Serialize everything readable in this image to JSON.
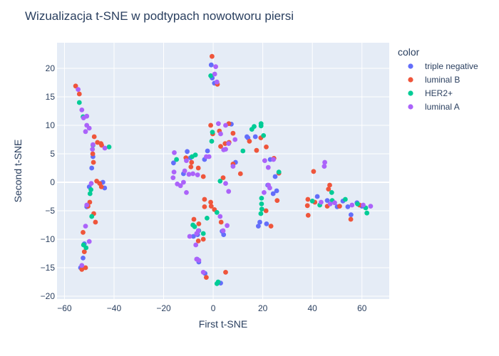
{
  "chart_data": {
    "type": "scatter",
    "title": "Wizualizacja t-SNE w podtypach nowotworu piersi",
    "xlabel": "First t-SNE",
    "ylabel": "Second t-SNE",
    "xlim": [
      -63,
      71
    ],
    "ylim": [
      -20.5,
      24.5
    ],
    "xticks": [
      -60,
      -40,
      -20,
      0,
      20,
      40,
      60
    ],
    "yticks": [
      -20,
      -15,
      -10,
      -5,
      0,
      5,
      10,
      15,
      20
    ],
    "xtick_labels": [
      "−60",
      "−40",
      "−20",
      "0",
      "20",
      "40",
      "60"
    ],
    "ytick_labels": [
      "−20",
      "−15",
      "−10",
      "−5",
      "0",
      "5",
      "10",
      "15",
      "20"
    ],
    "grid": true,
    "legend": {
      "title": "color",
      "position": "right"
    },
    "series": [
      {
        "name": "triple negative",
        "color": "#636efa",
        "points": [
          [
            -0.8,
            20.6
          ],
          [
            -0.4,
            18.3
          ],
          [
            0.5,
            17.4
          ],
          [
            -9.2,
            4.3
          ],
          [
            -10.5,
            5.4
          ],
          [
            -16,
            3.4
          ],
          [
            -12,
            1.5
          ],
          [
            -3.5,
            4
          ],
          [
            -2.3,
            5.5
          ],
          [
            9,
            3.5
          ],
          [
            13.6,
            8
          ],
          [
            14,
            7.8
          ],
          [
            17,
            8
          ],
          [
            23,
            4
          ],
          [
            22,
            -0.5
          ],
          [
            25,
            1
          ],
          [
            25.6,
            -1.5
          ],
          [
            24.2,
            -2
          ],
          [
            18.8,
            -7
          ],
          [
            18.2,
            -7.7
          ],
          [
            21.5,
            -7.3
          ],
          [
            -8,
            -9.5
          ],
          [
            -6.5,
            -13.5
          ],
          [
            -5.8,
            -14
          ],
          [
            -3.3,
            -16
          ],
          [
            3,
            -17.7
          ],
          [
            3.6,
            -8.6
          ],
          [
            4.2,
            -9.2
          ],
          [
            -6.3,
            -9.2
          ],
          [
            42,
            -2.5
          ],
          [
            46,
            -3.2
          ],
          [
            50,
            -4.3
          ],
          [
            52.3,
            -3.3
          ],
          [
            54.3,
            -4.3
          ],
          [
            55.6,
            -5.7
          ],
          [
            58,
            -3.6
          ],
          [
            60,
            -4.2
          ],
          [
            -49,
            2.5
          ],
          [
            -50,
            -0.8
          ],
          [
            -51,
            -4.3
          ],
          [
            -52,
            -10.8
          ],
          [
            -52.5,
            -13.3
          ],
          [
            -53.5,
            -15
          ],
          [
            -48.5,
            4.5
          ],
          [
            -43.8,
            -1
          ],
          [
            -44.5,
            0
          ],
          [
            7.3,
            10.2
          ]
        ]
      },
      {
        "name": "luminal B",
        "color": "#ef553b",
        "points": [
          [
            -55.5,
            16.9
          ],
          [
            -54,
            15.5
          ],
          [
            -48,
            8
          ],
          [
            -46.7,
            7
          ],
          [
            -45.3,
            6.8
          ],
          [
            -45,
            6.5
          ],
          [
            -48.6,
            5
          ],
          [
            -48.3,
            3.5
          ],
          [
            -47,
            0.2
          ],
          [
            -45.8,
            -0.2
          ],
          [
            -45.1,
            -0.8
          ],
          [
            -49.8,
            -3.5
          ],
          [
            -50.5,
            -4.2
          ],
          [
            -48.2,
            -5.5
          ],
          [
            -47.5,
            -7
          ],
          [
            -52.5,
            -8.8
          ],
          [
            -52,
            -12.2
          ],
          [
            -53,
            -15.3
          ],
          [
            -51.5,
            -15
          ],
          [
            -0.5,
            22.1
          ],
          [
            1.7,
            17.2
          ],
          [
            -0.2,
            8.5
          ],
          [
            -1,
            10
          ],
          [
            2.5,
            9
          ],
          [
            3,
            6.3
          ],
          [
            4.8,
            6.8
          ],
          [
            6.3,
            10.3
          ],
          [
            8,
            8.6
          ],
          [
            6.4,
            7
          ],
          [
            14.6,
            7.2
          ],
          [
            17.5,
            5.6
          ],
          [
            19.2,
            7.8
          ],
          [
            21.4,
            6.2
          ],
          [
            -4,
            1
          ],
          [
            -6,
            2.5
          ],
          [
            -9,
            2.7
          ],
          [
            -11,
            4.3
          ],
          [
            -8.7,
            3.5
          ],
          [
            -3.5,
            -3
          ],
          [
            -1,
            -3.5
          ],
          [
            -0.8,
            -4.2
          ],
          [
            0.5,
            -4.8
          ],
          [
            4,
            0.8
          ],
          [
            8,
            3.2
          ],
          [
            11,
            1.5
          ],
          [
            24.5,
            4.2
          ],
          [
            26.5,
            1.6
          ],
          [
            21.3,
            -5
          ],
          [
            23.3,
            -7.7
          ],
          [
            -3.5,
            -4.3
          ],
          [
            -5.8,
            -7.3
          ],
          [
            -7.8,
            -6.5
          ],
          [
            -6,
            -10.3
          ],
          [
            -4,
            -10
          ],
          [
            -2.8,
            -16.7
          ],
          [
            5,
            -15.8
          ],
          [
            40.5,
            1.9
          ],
          [
            38.2,
            -3
          ],
          [
            38,
            -4.1
          ],
          [
            38.3,
            -5.8
          ],
          [
            41,
            -3.5
          ],
          [
            46.5,
            -1.2
          ],
          [
            47,
            -0.5
          ],
          [
            46,
            -4.2
          ],
          [
            51,
            -4.2
          ],
          [
            55.5,
            -6.5
          ],
          [
            59,
            -4
          ],
          [
            3.2,
            -7
          ],
          [
            25.8,
            -3.2
          ]
        ]
      },
      {
        "name": "HER2+",
        "color": "#00cc96",
        "points": [
          [
            -54,
            14
          ],
          [
            -52.5,
            11.5
          ],
          [
            -42,
            6.2
          ],
          [
            -48.5,
            6.5
          ],
          [
            -49.3,
            -1.3
          ],
          [
            -49.7,
            -2
          ],
          [
            -49,
            -6
          ],
          [
            -52.3,
            -11
          ],
          [
            -51.3,
            -11.5
          ],
          [
            -1,
            18.7
          ],
          [
            -0.3,
            8.8
          ],
          [
            -0.6,
            7.2
          ],
          [
            12,
            5.5
          ],
          [
            15.6,
            9.3
          ],
          [
            16.5,
            9.8
          ],
          [
            19.3,
            10.3
          ],
          [
            19.3,
            9.9
          ],
          [
            20.3,
            8.2
          ],
          [
            -7.2,
            4.8
          ],
          [
            -8.5,
            4.5
          ],
          [
            -14.8,
            4
          ],
          [
            2.8,
            0.2
          ],
          [
            26.5,
            1.8
          ],
          [
            19.5,
            -2.8
          ],
          [
            19.5,
            -3.8
          ],
          [
            19.6,
            -4.7
          ],
          [
            19.2,
            -5.5
          ],
          [
            1.5,
            -5.3
          ],
          [
            -2.5,
            -6.3
          ],
          [
            -8.2,
            -7.5
          ],
          [
            -7.5,
            -7.8
          ],
          [
            -5.8,
            -8.5
          ],
          [
            -4,
            -9
          ],
          [
            2,
            -17.5
          ],
          [
            1.5,
            -17.8
          ],
          [
            40,
            -3.3
          ],
          [
            43,
            -4
          ],
          [
            47.8,
            -1.8
          ],
          [
            48,
            -3.2
          ],
          [
            53.3,
            -3
          ],
          [
            61.5,
            -4.5
          ],
          [
            62,
            -5.4
          ],
          [
            58.2,
            -3.8
          ]
        ]
      },
      {
        "name": "luminal A",
        "color": "#ab63fa",
        "points": [
          [
            -54.5,
            16.3
          ],
          [
            -53,
            12.7
          ],
          [
            -52.3,
            11.3
          ],
          [
            -51,
            11.6
          ],
          [
            -51,
            10
          ],
          [
            -50,
            9.5
          ],
          [
            -51.5,
            8.9
          ],
          [
            -48.7,
            5.8
          ],
          [
            -48.5,
            6.6
          ],
          [
            -43.7,
            6
          ],
          [
            -49.2,
            -0.2
          ],
          [
            -51,
            -4
          ],
          [
            -51.5,
            -7.7
          ],
          [
            -50,
            -10.4
          ],
          [
            -53,
            -14.6
          ],
          [
            1,
            20.3
          ],
          [
            0.6,
            19
          ],
          [
            1.5,
            17.6
          ],
          [
            2.1,
            10.3
          ],
          [
            3,
            8.5
          ],
          [
            4.2,
            5.7
          ],
          [
            5,
            5.8
          ],
          [
            6.2,
            6.8
          ],
          [
            8.8,
            7.5
          ],
          [
            5,
            10
          ],
          [
            -1.7,
            4.5
          ],
          [
            -2.8,
            4.5
          ],
          [
            -6.3,
            1.3
          ],
          [
            -8.2,
            1.5
          ],
          [
            -9.8,
            1.4
          ],
          [
            -11.5,
            2
          ],
          [
            -12,
            0
          ],
          [
            -13.2,
            -0.6
          ],
          [
            -15.8,
            1.8
          ],
          [
            -16.2,
            0.8
          ],
          [
            -10.8,
            3.8
          ],
          [
            -15.7,
            5.2
          ],
          [
            -14.5,
            -0.3
          ],
          [
            -10.8,
            -1.8
          ],
          [
            5,
            -0.2
          ],
          [
            6.2,
            -1.6
          ],
          [
            8,
            2.8
          ],
          [
            20.8,
            3.8
          ],
          [
            22.2,
            2.6
          ],
          [
            22.8,
            -1
          ],
          [
            20.5,
            -1.8
          ],
          [
            22.3,
            -0.5
          ],
          [
            2.8,
            -6
          ],
          [
            4,
            -8.5
          ],
          [
            -6,
            -8.5
          ],
          [
            -6.7,
            -9
          ],
          [
            -9.5,
            -9.5
          ],
          [
            -7,
            -11
          ],
          [
            -6.7,
            -13.5
          ],
          [
            -5.8,
            -13.7
          ],
          [
            -4,
            -15.8
          ],
          [
            45,
            3.5
          ],
          [
            44.8,
            2.8
          ],
          [
            43.5,
            -3.5
          ],
          [
            47.2,
            -3.8
          ],
          [
            49,
            -3.6
          ],
          [
            56,
            -4
          ],
          [
            60.5,
            -4
          ],
          [
            63.5,
            -4.2
          ],
          [
            5.6,
            -7.6
          ],
          [
            24.3,
            4
          ]
        ]
      }
    ]
  }
}
